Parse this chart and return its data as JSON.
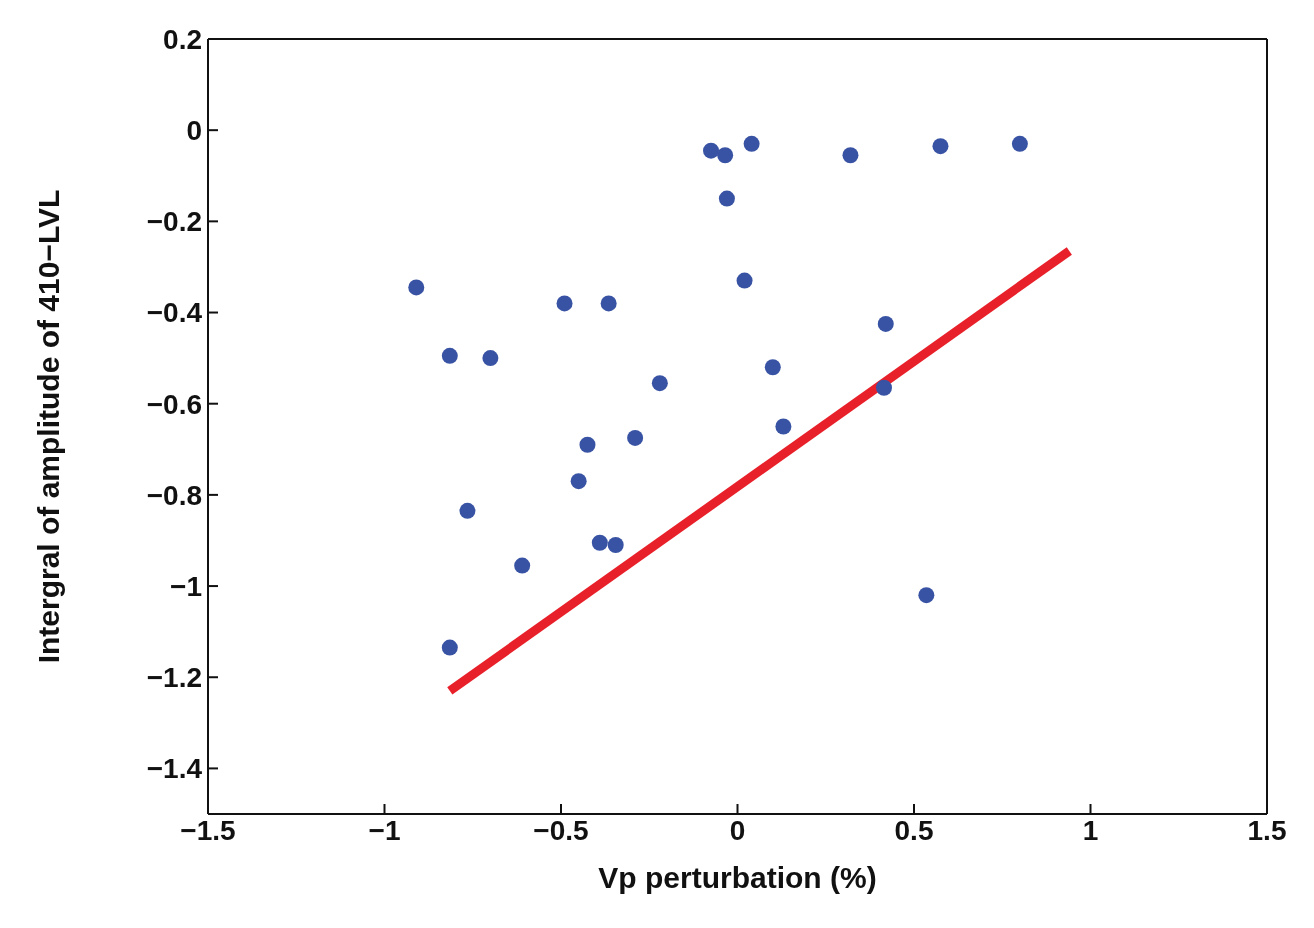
{
  "chart_data": {
    "type": "scatter",
    "xlabel": "Vp perturbation (%)",
    "ylabel": "Intergral of amplitude of 410−LVL",
    "marker": "circle",
    "xlim": [
      -1.5,
      1.5
    ],
    "xticks": [
      {
        "value": -1.5,
        "label": "−1.5"
      },
      {
        "value": -1,
        "label": "−1"
      },
      {
        "value": -0.5,
        "label": "−0.5"
      },
      0,
      0.5,
      1,
      1.5
    ],
    "ylim": [
      -1.5,
      0.2
    ],
    "yticks": [
      {
        "value": -1.4,
        "label": "−1.4"
      },
      {
        "value": -1.2,
        "label": "−1.2"
      },
      {
        "value": -1,
        "label": "−1"
      },
      {
        "value": -0.8,
        "label": "−0.8"
      },
      {
        "value": -0.6,
        "label": "−0.6"
      },
      {
        "value": -0.4,
        "label": "−0.4"
      },
      {
        "value": -0.2,
        "label": "−0.2"
      },
      0,
      0.2
    ],
    "series": [
      {
        "color": "#3953a4",
        "x": [
          -0.91,
          -0.815,
          -0.7,
          -0.49,
          -0.365,
          -0.22,
          -0.425,
          -0.29,
          -0.45,
          -0.765,
          -0.39,
          -0.345,
          -0.61,
          -0.815,
          -0.075,
          -0.035,
          -0.03,
          0.04,
          0.02,
          0.32,
          0.575,
          0.8,
          0.42,
          0.415,
          0.1,
          0.13,
          0.535
        ],
        "values": [
          -0.345,
          -0.495,
          -0.5,
          -0.38,
          -0.38,
          -0.555,
          -0.69,
          -0.675,
          -0.77,
          -0.835,
          -0.905,
          -0.91,
          -0.955,
          -1.135,
          -0.045,
          -0.055,
          -0.15,
          -0.03,
          -0.33,
          -0.055,
          -0.035,
          -0.03,
          -0.425,
          -0.565,
          -0.52,
          -0.65,
          -1.02
        ]
      },
      {
        "type": "line",
        "color": "#e8202a",
        "marker": "none",
        "line_style": "solid",
        "x": [
          -0.815,
          0.94
        ],
        "values": [
          -1.23,
          -0.265
        ]
      }
    ]
  }
}
